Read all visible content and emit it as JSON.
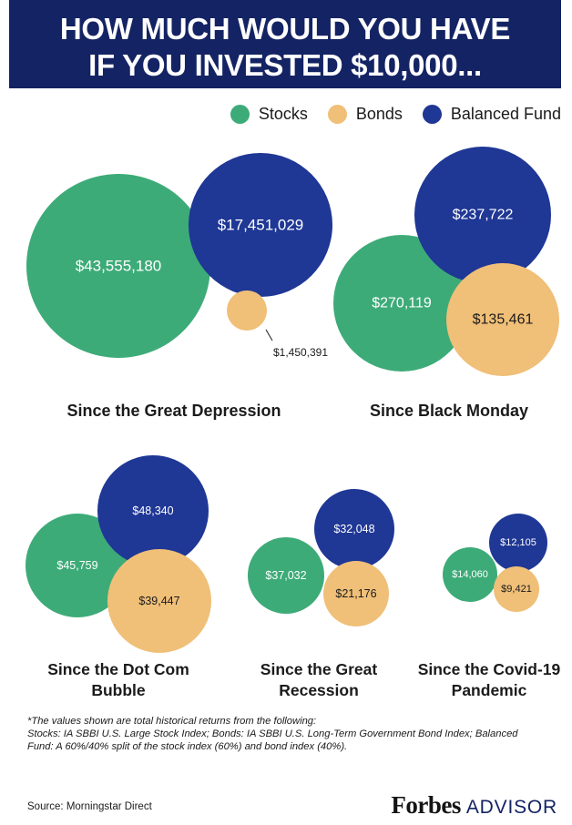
{
  "header": {
    "title_line1": "HOW MUCH WOULD YOU HAVE",
    "title_line2": "IF YOU INVESTED $10,000..."
  },
  "legend": [
    {
      "label": "Stocks",
      "color": "#3dab78"
    },
    {
      "label": "Bonds",
      "color": "#f0bf78"
    },
    {
      "label": "Balanced Fund",
      "color": "#1f3795"
    }
  ],
  "chart_data": [
    {
      "type": "bubble",
      "title": "Since the Great Depression",
      "series": [
        {
          "name": "Stocks",
          "value": 43555180,
          "label": "$43,555,180"
        },
        {
          "name": "Balanced Fund",
          "value": 17451029,
          "label": "$17,451,029"
        },
        {
          "name": "Bonds",
          "value": 1450391,
          "label": "$1,450,391"
        }
      ]
    },
    {
      "type": "bubble",
      "title": "Since Black Monday",
      "series": [
        {
          "name": "Stocks",
          "value": 270119,
          "label": "$270,119"
        },
        {
          "name": "Balanced Fund",
          "value": 237722,
          "label": "$237,722"
        },
        {
          "name": "Bonds",
          "value": 135461,
          "label": "$135,461"
        }
      ]
    },
    {
      "type": "bubble",
      "title": "Since the Dot Com Bubble",
      "series": [
        {
          "name": "Stocks",
          "value": 45759,
          "label": "$45,759"
        },
        {
          "name": "Balanced Fund",
          "value": 48340,
          "label": "$48,340"
        },
        {
          "name": "Bonds",
          "value": 39447,
          "label": "$39,447"
        }
      ]
    },
    {
      "type": "bubble",
      "title": "Since the Great Recession",
      "series": [
        {
          "name": "Stocks",
          "value": 37032,
          "label": "$37,032"
        },
        {
          "name": "Balanced Fund",
          "value": 32048,
          "label": "$32,048"
        },
        {
          "name": "Bonds",
          "value": 21176,
          "label": "$21,176"
        }
      ]
    },
    {
      "type": "bubble",
      "title": "Since the Covid-19 Pandemic",
      "series": [
        {
          "name": "Stocks",
          "value": 14060,
          "label": "$14,060"
        },
        {
          "name": "Balanced Fund",
          "value": 12105,
          "label": "$12,105"
        },
        {
          "name": "Bonds",
          "value": 9421,
          "label": "$9,421"
        }
      ]
    }
  ],
  "footnote": {
    "line1": "*The values shown are total historical returns from the following:",
    "line2": "Stocks: IA SBBI U.S. Large Stock Index; Bonds: IA SBBI U.S. Long-Term Government Bond Index; Balanced",
    "line3": "Fund: A 60%/40% split of the stock index (60%) and bond index (40%)."
  },
  "source": "Source: Morningstar Direct",
  "brand": {
    "name": "Forbes",
    "suffix": "ADVISOR"
  }
}
